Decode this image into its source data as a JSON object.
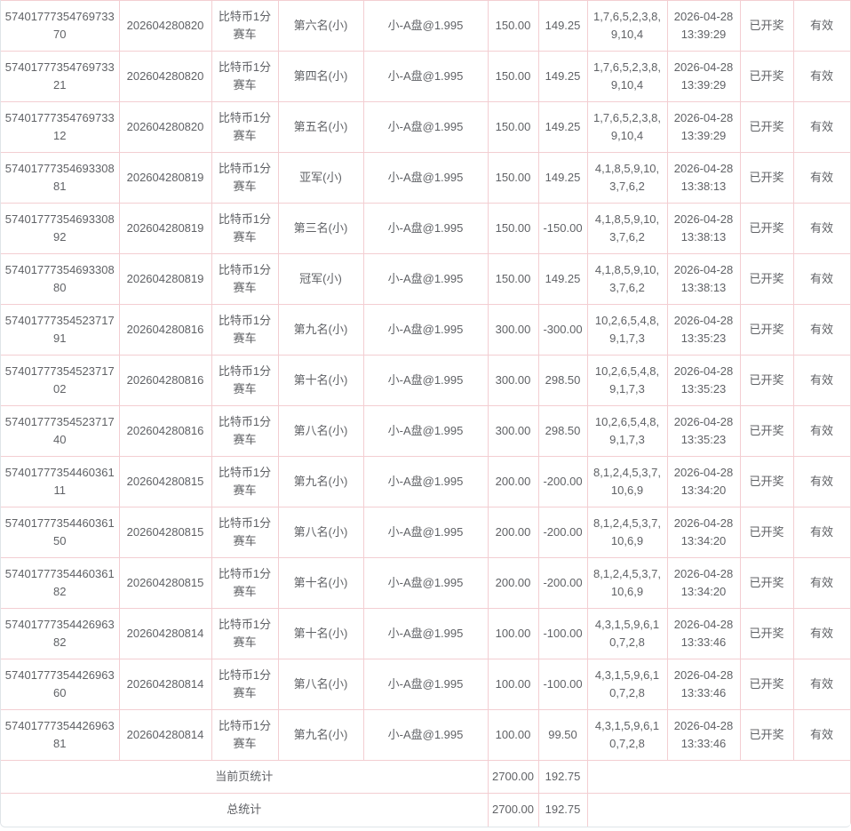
{
  "colors": {
    "cell_border": "#f3ced2",
    "outer_border": "#dfe4e8",
    "text": "#606266",
    "background": "#ffffff"
  },
  "table": {
    "field_order": [
      "order_id",
      "period",
      "lottery",
      "position",
      "play",
      "amount",
      "win_loss",
      "result",
      "time",
      "status",
      "validity"
    ],
    "rows": [
      {
        "order_id": "5740177735476973370",
        "period": "202604280820",
        "lottery": "比特币1分赛车",
        "position": "第六名(小)",
        "play": "小-A盘@1.995",
        "amount": "150.00",
        "win_loss": "149.25",
        "result": "1,7,6,5,2,3,8,9,10,4",
        "time": "2026-04-28 13:39:29",
        "status": "已开奖",
        "validity": "有效"
      },
      {
        "order_id": "5740177735476973321",
        "period": "202604280820",
        "lottery": "比特币1分赛车",
        "position": "第四名(小)",
        "play": "小-A盘@1.995",
        "amount": "150.00",
        "win_loss": "149.25",
        "result": "1,7,6,5,2,3,8,9,10,4",
        "time": "2026-04-28 13:39:29",
        "status": "已开奖",
        "validity": "有效"
      },
      {
        "order_id": "5740177735476973312",
        "period": "202604280820",
        "lottery": "比特币1分赛车",
        "position": "第五名(小)",
        "play": "小-A盘@1.995",
        "amount": "150.00",
        "win_loss": "149.25",
        "result": "1,7,6,5,2,3,8,9,10,4",
        "time": "2026-04-28 13:39:29",
        "status": "已开奖",
        "validity": "有效"
      },
      {
        "order_id": "5740177735469330881",
        "period": "202604280819",
        "lottery": "比特币1分赛车",
        "position": "亚军(小)",
        "play": "小-A盘@1.995",
        "amount": "150.00",
        "win_loss": "149.25",
        "result": "4,1,8,5,9,10,3,7,6,2",
        "time": "2026-04-28 13:38:13",
        "status": "已开奖",
        "validity": "有效"
      },
      {
        "order_id": "5740177735469330892",
        "period": "202604280819",
        "lottery": "比特币1分赛车",
        "position": "第三名(小)",
        "play": "小-A盘@1.995",
        "amount": "150.00",
        "win_loss": "-150.00",
        "result": "4,1,8,5,9,10,3,7,6,2",
        "time": "2026-04-28 13:38:13",
        "status": "已开奖",
        "validity": "有效"
      },
      {
        "order_id": "5740177735469330880",
        "period": "202604280819",
        "lottery": "比特币1分赛车",
        "position": "冠军(小)",
        "play": "小-A盘@1.995",
        "amount": "150.00",
        "win_loss": "149.25",
        "result": "4,1,8,5,9,10,3,7,6,2",
        "time": "2026-04-28 13:38:13",
        "status": "已开奖",
        "validity": "有效"
      },
      {
        "order_id": "5740177735452371791",
        "period": "202604280816",
        "lottery": "比特币1分赛车",
        "position": "第九名(小)",
        "play": "小-A盘@1.995",
        "amount": "300.00",
        "win_loss": "-300.00",
        "result": "10,2,6,5,4,8,9,1,7,3",
        "time": "2026-04-28 13:35:23",
        "status": "已开奖",
        "validity": "有效"
      },
      {
        "order_id": "5740177735452371702",
        "period": "202604280816",
        "lottery": "比特币1分赛车",
        "position": "第十名(小)",
        "play": "小-A盘@1.995",
        "amount": "300.00",
        "win_loss": "298.50",
        "result": "10,2,6,5,4,8,9,1,7,3",
        "time": "2026-04-28 13:35:23",
        "status": "已开奖",
        "validity": "有效"
      },
      {
        "order_id": "5740177735452371740",
        "period": "202604280816",
        "lottery": "比特币1分赛车",
        "position": "第八名(小)",
        "play": "小-A盘@1.995",
        "amount": "300.00",
        "win_loss": "298.50",
        "result": "10,2,6,5,4,8,9,1,7,3",
        "time": "2026-04-28 13:35:23",
        "status": "已开奖",
        "validity": "有效"
      },
      {
        "order_id": "5740177735446036111",
        "period": "202604280815",
        "lottery": "比特币1分赛车",
        "position": "第九名(小)",
        "play": "小-A盘@1.995",
        "amount": "200.00",
        "win_loss": "-200.00",
        "result": "8,1,2,4,5,3,7,10,6,9",
        "time": "2026-04-28 13:34:20",
        "status": "已开奖",
        "validity": "有效"
      },
      {
        "order_id": "5740177735446036150",
        "period": "202604280815",
        "lottery": "比特币1分赛车",
        "position": "第八名(小)",
        "play": "小-A盘@1.995",
        "amount": "200.00",
        "win_loss": "-200.00",
        "result": "8,1,2,4,5,3,7,10,6,9",
        "time": "2026-04-28 13:34:20",
        "status": "已开奖",
        "validity": "有效"
      },
      {
        "order_id": "5740177735446036182",
        "period": "202604280815",
        "lottery": "比特币1分赛车",
        "position": "第十名(小)",
        "play": "小-A盘@1.995",
        "amount": "200.00",
        "win_loss": "-200.00",
        "result": "8,1,2,4,5,3,7,10,6,9",
        "time": "2026-04-28 13:34:20",
        "status": "已开奖",
        "validity": "有效"
      },
      {
        "order_id": "5740177735442696382",
        "period": "202604280814",
        "lottery": "比特币1分赛车",
        "position": "第十名(小)",
        "play": "小-A盘@1.995",
        "amount": "100.00",
        "win_loss": "-100.00",
        "result": "4,3,1,5,9,6,10,7,2,8",
        "time": "2026-04-28 13:33:46",
        "status": "已开奖",
        "validity": "有效"
      },
      {
        "order_id": "5740177735442696360",
        "period": "202604280814",
        "lottery": "比特币1分赛车",
        "position": "第八名(小)",
        "play": "小-A盘@1.995",
        "amount": "100.00",
        "win_loss": "-100.00",
        "result": "4,3,1,5,9,6,10,7,2,8",
        "time": "2026-04-28 13:33:46",
        "status": "已开奖",
        "validity": "有效"
      },
      {
        "order_id": "5740177735442696381",
        "period": "202604280814",
        "lottery": "比特币1分赛车",
        "position": "第九名(小)",
        "play": "小-A盘@1.995",
        "amount": "100.00",
        "win_loss": "99.50",
        "result": "4,3,1,5,9,6,10,7,2,8",
        "time": "2026-04-28 13:33:46",
        "status": "已开奖",
        "validity": "有效"
      }
    ],
    "footer": [
      {
        "label": "当前页统计",
        "amount": "2700.00",
        "win_loss": "192.75"
      },
      {
        "label": "总统计",
        "amount": "2700.00",
        "win_loss": "192.75"
      }
    ]
  }
}
